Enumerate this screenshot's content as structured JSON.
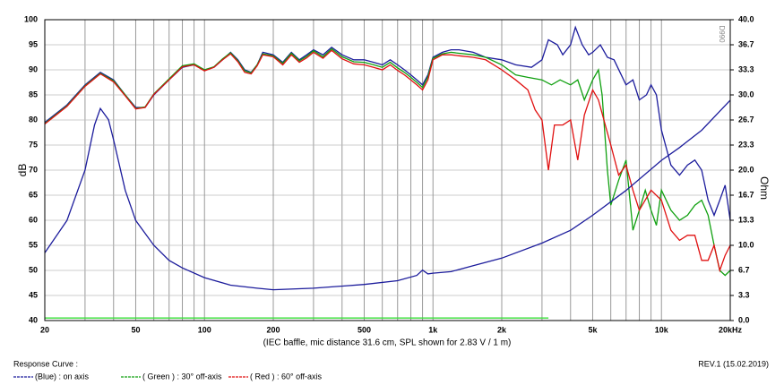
{
  "chart_data": {
    "type": "line",
    "xlabel": "(IEC baffle, mic distance 31.6 cm, SPL shown for 2.83 V / 1 m)",
    "ylabel": "dB",
    "y2label": "Ohm",
    "stamp": "D990",
    "legend_title": "Response Curve :",
    "note": "REV.1 (15.02.2019)",
    "legend": "bottom-left",
    "xscale": "log",
    "grid": true,
    "xlim": [
      20,
      20000
    ],
    "xticks": [
      20,
      50,
      100,
      200,
      500,
      {
        "value": 1000,
        "label": "1k"
      },
      {
        "value": 2000,
        "label": "2k"
      },
      {
        "value": 5000,
        "label": "5k"
      },
      {
        "value": 10000,
        "label": "10k"
      },
      {
        "value": 20000,
        "label": "20kHz"
      }
    ],
    "xgrid": [
      30,
      40,
      60,
      70,
      80,
      90,
      300,
      400,
      600,
      700,
      800,
      900,
      3000,
      4000,
      6000,
      7000,
      8000,
      9000
    ],
    "ylim": [
      40,
      100
    ],
    "yticks": [
      40,
      45,
      50,
      55,
      60,
      65,
      70,
      75,
      80,
      85,
      90,
      95,
      100
    ],
    "y2lim": [
      0,
      40
    ],
    "y2ticks": [
      {
        "value": 0,
        "label": "0.0"
      },
      {
        "value": 3.333,
        "label": "3.3"
      },
      {
        "value": 6.667,
        "label": "6.7"
      },
      {
        "value": 10,
        "label": "10.0"
      },
      {
        "value": 13.333,
        "label": "13.3"
      },
      {
        "value": 16.667,
        "label": "16.7"
      },
      {
        "value": 20,
        "label": "20.0"
      },
      {
        "value": 23.333,
        "label": "23.3"
      },
      {
        "value": 26.667,
        "label": "26.7"
      },
      {
        "value": 30,
        "label": "30.0"
      },
      {
        "value": 33.333,
        "label": "33.3"
      },
      {
        "value": 36.667,
        "label": "36.7"
      },
      {
        "value": 40,
        "label": "40.0"
      }
    ],
    "series": [
      {
        "name": "(Blue)  : on axis",
        "color": "#1c1c9c",
        "x": [
          20,
          25,
          30,
          35,
          40,
          45,
          50,
          55,
          60,
          70,
          80,
          90,
          100,
          110,
          120,
          130,
          140,
          150,
          160,
          170,
          180,
          200,
          220,
          240,
          260,
          280,
          300,
          330,
          360,
          400,
          450,
          500,
          550,
          600,
          650,
          700,
          750,
          800,
          850,
          900,
          950,
          1000,
          1100,
          1200,
          1300,
          1500,
          1700,
          2000,
          2300,
          2700,
          3000,
          3200,
          3500,
          3700,
          4000,
          4200,
          4500,
          4800,
          5000,
          5400,
          5800,
          6200,
          7000,
          7500,
          8000,
          8600,
          9000,
          9500,
          10000,
          11000,
          12000,
          13000,
          14000,
          15000,
          16000,
          17000,
          18000,
          19000,
          20000
        ],
        "values": [
          79.5,
          83,
          87,
          89.5,
          88,
          85,
          82.5,
          82.5,
          85,
          88,
          90.5,
          91,
          90,
          90.5,
          92,
          93.5,
          92,
          90,
          89.5,
          91,
          93.5,
          93,
          91.5,
          93.5,
          92,
          93,
          94,
          93,
          94.5,
          93,
          92,
          92,
          91.5,
          91,
          92,
          91,
          90,
          89,
          88,
          87,
          89,
          92.5,
          93.5,
          94,
          94,
          93.5,
          92.5,
          92,
          91,
          90.5,
          92,
          96,
          95,
          93,
          95,
          98.5,
          95,
          93,
          93.5,
          95,
          92.5,
          92,
          87,
          88,
          84,
          85,
          87,
          85,
          78,
          71,
          69,
          71,
          72,
          70,
          64,
          61,
          64,
          67,
          60
        ]
      },
      {
        "name": "( Green ) : 30° off-axis",
        "color": "#10a010",
        "x": [
          20,
          25,
          30,
          35,
          40,
          45,
          50,
          55,
          60,
          70,
          80,
          90,
          100,
          110,
          120,
          130,
          140,
          150,
          160,
          170,
          180,
          200,
          220,
          240,
          260,
          280,
          300,
          330,
          360,
          400,
          450,
          500,
          550,
          600,
          650,
          700,
          750,
          800,
          850,
          900,
          950,
          1000,
          1100,
          1200,
          1300,
          1500,
          1700,
          2000,
          2300,
          2600,
          3000,
          3300,
          3600,
          4000,
          4300,
          4600,
          5000,
          5300,
          5500,
          5800,
          6000,
          6500,
          7000,
          7500,
          8000,
          8500,
          9000,
          9500,
          10000,
          11000,
          12000,
          13000,
          14000,
          15000,
          16000,
          17000,
          18000,
          19000,
          20000
        ],
        "values": [
          79.3,
          82.8,
          86.8,
          89.3,
          87.8,
          85,
          82.3,
          82.6,
          85.2,
          88.2,
          90.8,
          91.2,
          90,
          90.6,
          92.2,
          93.4,
          91.8,
          89.8,
          89.4,
          91,
          93.2,
          92.8,
          91.3,
          93.3,
          91.8,
          92.7,
          93.8,
          92.6,
          94.2,
          92.6,
          91.6,
          91.5,
          91,
          90.5,
          91.5,
          90.4,
          89.5,
          88.5,
          87.5,
          86.5,
          88.6,
          92.3,
          93.2,
          93.5,
          93.3,
          93,
          92.5,
          91,
          89,
          88.5,
          88,
          87,
          88,
          87,
          88,
          84,
          88,
          90,
          85,
          70,
          63,
          68,
          72,
          58,
          62,
          66,
          62,
          59,
          66,
          62,
          60,
          61,
          63,
          64,
          61,
          55,
          50,
          49,
          50
        ]
      },
      {
        "name": "( Red ) : 60° off-axis",
        "color": "#e01010",
        "x": [
          20,
          25,
          30,
          35,
          40,
          45,
          50,
          55,
          60,
          70,
          80,
          90,
          100,
          110,
          120,
          130,
          140,
          150,
          160,
          170,
          180,
          200,
          220,
          240,
          260,
          280,
          300,
          330,
          360,
          400,
          450,
          500,
          550,
          600,
          650,
          700,
          750,
          800,
          850,
          900,
          950,
          1000,
          1100,
          1200,
          1300,
          1500,
          1700,
          2000,
          2300,
          2600,
          2800,
          3000,
          3200,
          3400,
          3700,
          4000,
          4300,
          4600,
          5000,
          5300,
          5600,
          6000,
          6500,
          7000,
          7500,
          8000,
          9000,
          10000,
          11000,
          12000,
          13000,
          14000,
          15000,
          16000,
          17000,
          18000,
          19000,
          20000
        ],
        "values": [
          79.2,
          82.7,
          86.7,
          89.2,
          87.6,
          84.8,
          82.2,
          82.5,
          85.1,
          88,
          90.6,
          91,
          89.8,
          90.5,
          92,
          93.2,
          91.6,
          89.5,
          89.2,
          90.8,
          93,
          92.6,
          91,
          93,
          91.5,
          92.4,
          93.5,
          92.3,
          93.9,
          92.2,
          91.2,
          91,
          90.5,
          90,
          91,
          89.9,
          89,
          88,
          87,
          86,
          88,
          92,
          93,
          93,
          92.8,
          92.5,
          92,
          90,
          88,
          86,
          82,
          80,
          70,
          79,
          79,
          80,
          72,
          81,
          86,
          84,
          80,
          75,
          69,
          71,
          66,
          62,
          66,
          64,
          58,
          56,
          57,
          57,
          52,
          52,
          55,
          50,
          53,
          55
        ]
      },
      {
        "color": "#1c1c9c",
        "axis": "y2",
        "x": [
          20,
          25,
          30,
          33,
          35,
          38,
          40,
          45,
          50,
          60,
          70,
          80,
          100,
          130,
          170,
          200,
          300,
          500,
          700,
          850,
          900,
          950,
          1000,
          1200,
          1500,
          2000,
          3000,
          4000,
          5000,
          7000,
          10000,
          12000,
          15000,
          20000
        ],
        "values": [
          9,
          13.3,
          20,
          26,
          28.2,
          26.7,
          24,
          17.3,
          13.3,
          10,
          8,
          7,
          5.7,
          4.7,
          4.3,
          4.1,
          4.3,
          4.8,
          5.3,
          6,
          6.7,
          6.2,
          6.3,
          6.5,
          7.3,
          8.3,
          10.3,
          12,
          14,
          17.3,
          21.3,
          23,
          25.3,
          29.3
        ]
      },
      {
        "color": "#33dd33",
        "x": [
          20,
          3200
        ],
        "values": [
          40.5,
          40.5
        ]
      }
    ]
  }
}
